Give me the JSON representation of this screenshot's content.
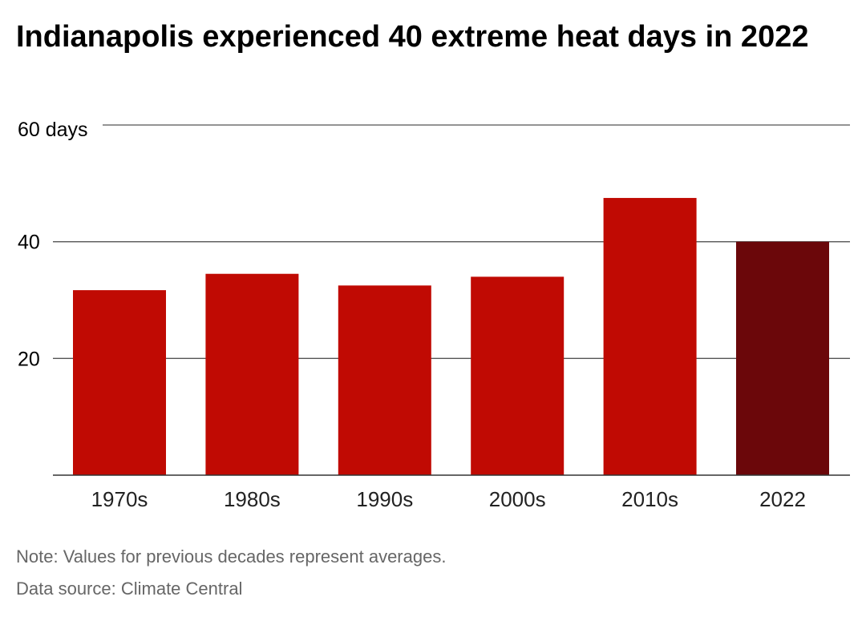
{
  "chart_data": {
    "type": "bar",
    "title": "Indianapolis experienced 40 extreme heat days in 2022",
    "categories": [
      "1970s",
      "1980s",
      "1990s",
      "2000s",
      "2010s",
      "2022"
    ],
    "values": [
      31.7,
      34.5,
      32.5,
      34,
      47.5,
      40
    ],
    "ylim": [
      0,
      60
    ],
    "yticks": [
      {
        "value": 20,
        "label": "20"
      },
      {
        "value": 40,
        "label": "40"
      },
      {
        "value": 60,
        "label": "60 days"
      }
    ],
    "grid": true,
    "colors": {
      "bar": "#c00a03",
      "highlight": "#6b070a",
      "gridline": "#555555"
    },
    "highlight_category": "2022"
  },
  "notes": {
    "note": "Note: Values for previous decades represent averages.",
    "source": "Data source: Climate Central"
  }
}
